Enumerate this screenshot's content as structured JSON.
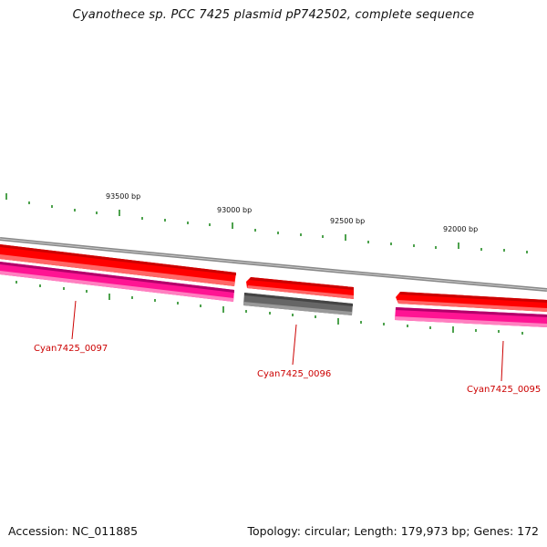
{
  "title": "Cyanothece sp. PCC 7425 plasmid pP742502, complete sequence",
  "footer": {
    "accession": "Accession: NC_011885",
    "summary": "Topology: circular; Length: 179,973 bp; Genes: 172"
  },
  "scale_labels": [
    "93500 bp",
    "93000 bp",
    "92500 bp",
    "92000 bp"
  ],
  "genes": [
    {
      "name": "Cyan7425_0097"
    },
    {
      "name": "Cyan7425_0096"
    },
    {
      "name": "Cyan7425_0095"
    }
  ],
  "colors": {
    "feature_forward": "#ff0000",
    "feature_reverse": "#ff1493",
    "feature_other": "#666666",
    "backbone": "#888888",
    "tick": "#228b22",
    "label": "#cc0000"
  }
}
